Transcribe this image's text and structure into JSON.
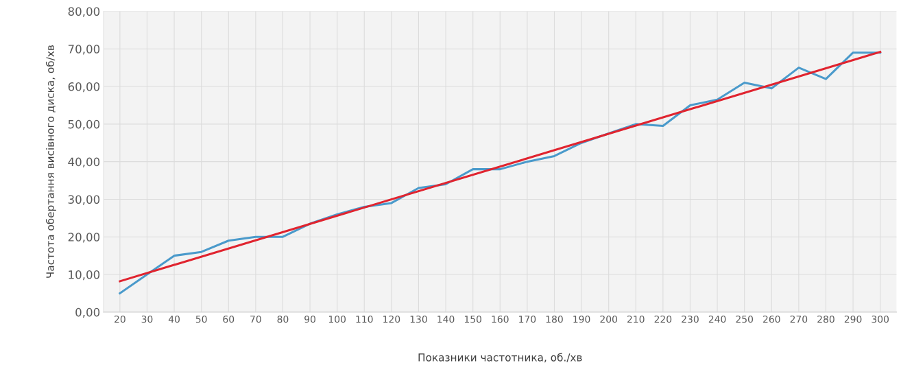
{
  "chart_data": {
    "type": "line",
    "xlabel": "Показники частотника, об./хв",
    "ylabel": "Частота обертання висівного диска, об/хв",
    "x": [
      20,
      30,
      40,
      50,
      60,
      70,
      80,
      90,
      100,
      110,
      120,
      130,
      140,
      150,
      160,
      170,
      180,
      190,
      200,
      210,
      220,
      230,
      240,
      250,
      260,
      270,
      280,
      290,
      300
    ],
    "series": [
      {
        "color": "#4a9acb",
        "values": [
          5,
          10,
          15,
          16,
          19,
          20,
          20,
          23.5,
          26,
          28,
          29,
          33,
          34,
          38,
          38,
          40,
          41.5,
          45,
          47.5,
          50,
          49.5,
          55,
          56.5,
          61,
          59.5,
          65,
          62,
          69,
          69
        ]
      },
      {
        "color": "#e0242f",
        "x": [
          20,
          300
        ],
        "values": [
          8.2,
          69.2
        ]
      }
    ],
    "xlim": [
      14,
      306
    ],
    "xticks": [
      20,
      30,
      40,
      50,
      60,
      70,
      80,
      90,
      100,
      110,
      120,
      130,
      140,
      150,
      160,
      170,
      180,
      190,
      200,
      210,
      220,
      230,
      240,
      250,
      260,
      270,
      280,
      290,
      300
    ],
    "ylim": [
      0,
      80
    ],
    "yticks": [
      {
        "value": 0,
        "label": "0,00"
      },
      {
        "value": 10,
        "label": "10,00"
      },
      {
        "value": 20,
        "label": "20,00"
      },
      {
        "value": 30,
        "label": "30,00"
      },
      {
        "value": 40,
        "label": "40,00"
      },
      {
        "value": 50,
        "label": "50,00"
      },
      {
        "value": 60,
        "label": "60,00"
      },
      {
        "value": 70,
        "label": "70,00"
      },
      {
        "value": 80,
        "label": "80,00"
      }
    ],
    "grid": true,
    "line_style": "solid"
  }
}
